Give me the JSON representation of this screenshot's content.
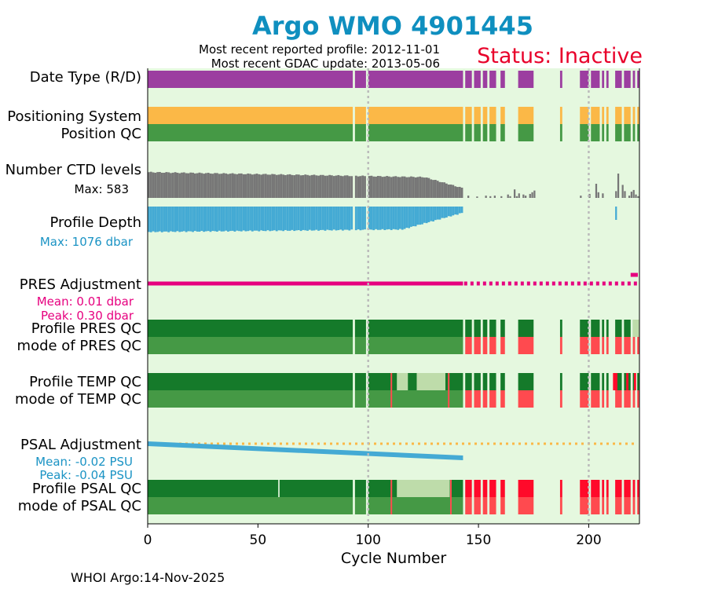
{
  "colors": {
    "title": "#0f8fbf",
    "status": "#e8002a",
    "plot_bg": "#e5f8df",
    "date_type": "#9c3ea0",
    "positioning": "#fbb847",
    "qc_good_dark": "#157a2a",
    "qc_good": "#459945",
    "qc_probably_good": "#bedcaa",
    "qc_bad": "#ff4a4f",
    "qc_bad_bright": "#ff0a2a",
    "ctd": "#777777",
    "depth": "#44aad4",
    "pres_adj": "#e6007f",
    "psal_adj": "#44aad4",
    "psal_adj_dots": "#fbb847",
    "psal_text": "#1a93c4",
    "pres_text": "#e6007f"
  },
  "chart_data": {
    "type": "timeline",
    "title": "Argo WMO 4901445",
    "most_recent_profile": "Most recent reported profile: 2012-11-01",
    "most_recent_gdac": "Most recent GDAC update: 2013-05-06",
    "status": "Status: Inactive",
    "xlabel": "Cycle Number",
    "xlim": [
      0,
      223
    ],
    "xticks": [
      0,
      50,
      100,
      150,
      200
    ],
    "dashed_cycles": [
      100,
      200
    ],
    "footer": "WHOI Argo:14-Nov-2025",
    "row_labels": {
      "date_type": "Date Type (R/D)",
      "positioning": "Positioning System",
      "position_qc": "Position QC",
      "ctd": "Number CTD levels",
      "depth": "Profile Depth",
      "pres_adj": "PRES Adjustment",
      "profile_pres_qc": "Profile PRES QC",
      "mode_pres_qc": "mode of PRES QC",
      "profile_temp_qc": "Profile TEMP QC",
      "mode_temp_qc": "mode of TEMP QC",
      "psal_adj": "PSAL Adjustment",
      "profile_psal_qc": "Profile PSAL QC",
      "mode_psal_qc": "mode of PSAL QC"
    },
    "ctd_max": "Max: 583",
    "depth_max": "Max: 1076 dbar",
    "pres_mean": "Mean: 0.01 dbar",
    "pres_peak": "Peak: 0.30 dbar",
    "psal_mean": "Mean: -0.02 PSU",
    "psal_peak": "Peak: -0.04 PSU",
    "ctd_max_value": 583,
    "depth_max_value": 1076,
    "present_ranges": [
      [
        0,
        93
      ],
      [
        94,
        99
      ],
      [
        100,
        143
      ],
      [
        144,
        147
      ],
      [
        148,
        151
      ],
      [
        152,
        154
      ],
      [
        155,
        158
      ],
      [
        160,
        162
      ],
      [
        168,
        175
      ],
      [
        187,
        188
      ],
      [
        196,
        200
      ],
      [
        201,
        205
      ],
      [
        206,
        207
      ],
      [
        208,
        209
      ],
      [
        212,
        215
      ],
      [
        216,
        219
      ],
      [
        220,
        221
      ],
      [
        222,
        223
      ]
    ],
    "pres_qc_bad_from": 144,
    "pres_qc_late_light": [
      [
        220,
        223
      ]
    ],
    "temp_qc_light": [
      [
        113,
        118
      ],
      [
        122,
        135
      ]
    ],
    "temp_qc_bad_lines": [
      110.5,
      136.5
    ],
    "psal_qc_light": [
      [
        113,
        137
      ]
    ],
    "psal_qc_white_gap": [
      59.5
    ],
    "psal_qc_bad_lines": [
      110.5,
      137.5
    ],
    "psal_adj_start": -0.001,
    "psal_adj_end": -0.04,
    "psal_adj_last_cycle": 143,
    "pres_adj_solid_until": 143,
    "pres_adj_late_segment": [
      219,
      223
    ],
    "ctd_sparse": [
      [
        145,
        40
      ],
      [
        149,
        25
      ],
      [
        153,
        40
      ],
      [
        155,
        30
      ],
      [
        157,
        40
      ],
      [
        160,
        30
      ],
      [
        163,
        60
      ],
      [
        164,
        30
      ],
      [
        166,
        150
      ],
      [
        167,
        30
      ],
      [
        168,
        80
      ],
      [
        170,
        60
      ],
      [
        171,
        40
      ],
      [
        173,
        70
      ],
      [
        174,
        100
      ],
      [
        175,
        130
      ],
      [
        196,
        40
      ],
      [
        200,
        70
      ],
      [
        203,
        250
      ],
      [
        204,
        100
      ],
      [
        206,
        80
      ],
      [
        212,
        120
      ],
      [
        213,
        430
      ],
      [
        215,
        230
      ],
      [
        216,
        120
      ],
      [
        218,
        40
      ],
      [
        219,
        110
      ],
      [
        220,
        140
      ],
      [
        221,
        60
      ],
      [
        222,
        30
      ]
    ],
    "depth_late": [
      [
        212,
        0.5
      ]
    ]
  }
}
